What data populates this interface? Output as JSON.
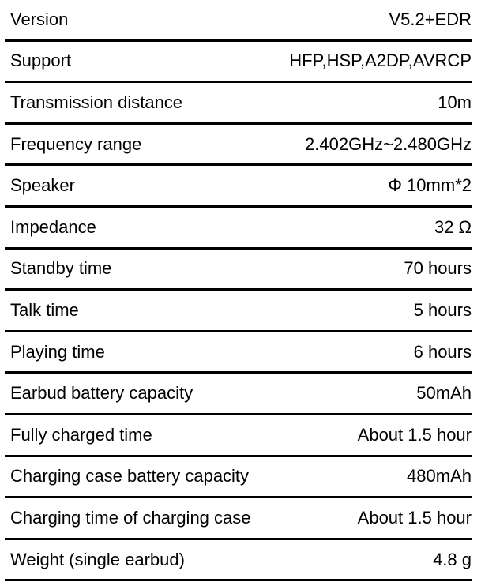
{
  "colors": {
    "background": "#ffffff",
    "text": "#000000",
    "divider": "#000000"
  },
  "table": {
    "rows": [
      {
        "label": "Version",
        "value": "V5.2+EDR"
      },
      {
        "label": "Support",
        "value": "HFP,HSP,A2DP,AVRCP"
      },
      {
        "label": "Transmission distance",
        "value": "10m"
      },
      {
        "label": "Frequency range",
        "value": "2.402GHz~2.480GHz"
      },
      {
        "label": "Speaker",
        "value": "Φ 10mm*2"
      },
      {
        "label": "Impedance",
        "value": "32 Ω"
      },
      {
        "label": "Standby time",
        "value": "70 hours"
      },
      {
        "label": "Talk time",
        "value": "5 hours"
      },
      {
        "label": "Playing time",
        "value": "6 hours"
      },
      {
        "label": "Earbud battery capacity",
        "value": "50mAh"
      },
      {
        "label": "Fully charged time",
        "value": "About 1.5 hour"
      },
      {
        "label": "Charging case battery capacity",
        "value": "480mAh"
      },
      {
        "label": "Charging time of charging case",
        "value": "About 1.5 hour"
      },
      {
        "label": "Weight (single earbud)",
        "value": "4.8 g"
      }
    ]
  }
}
